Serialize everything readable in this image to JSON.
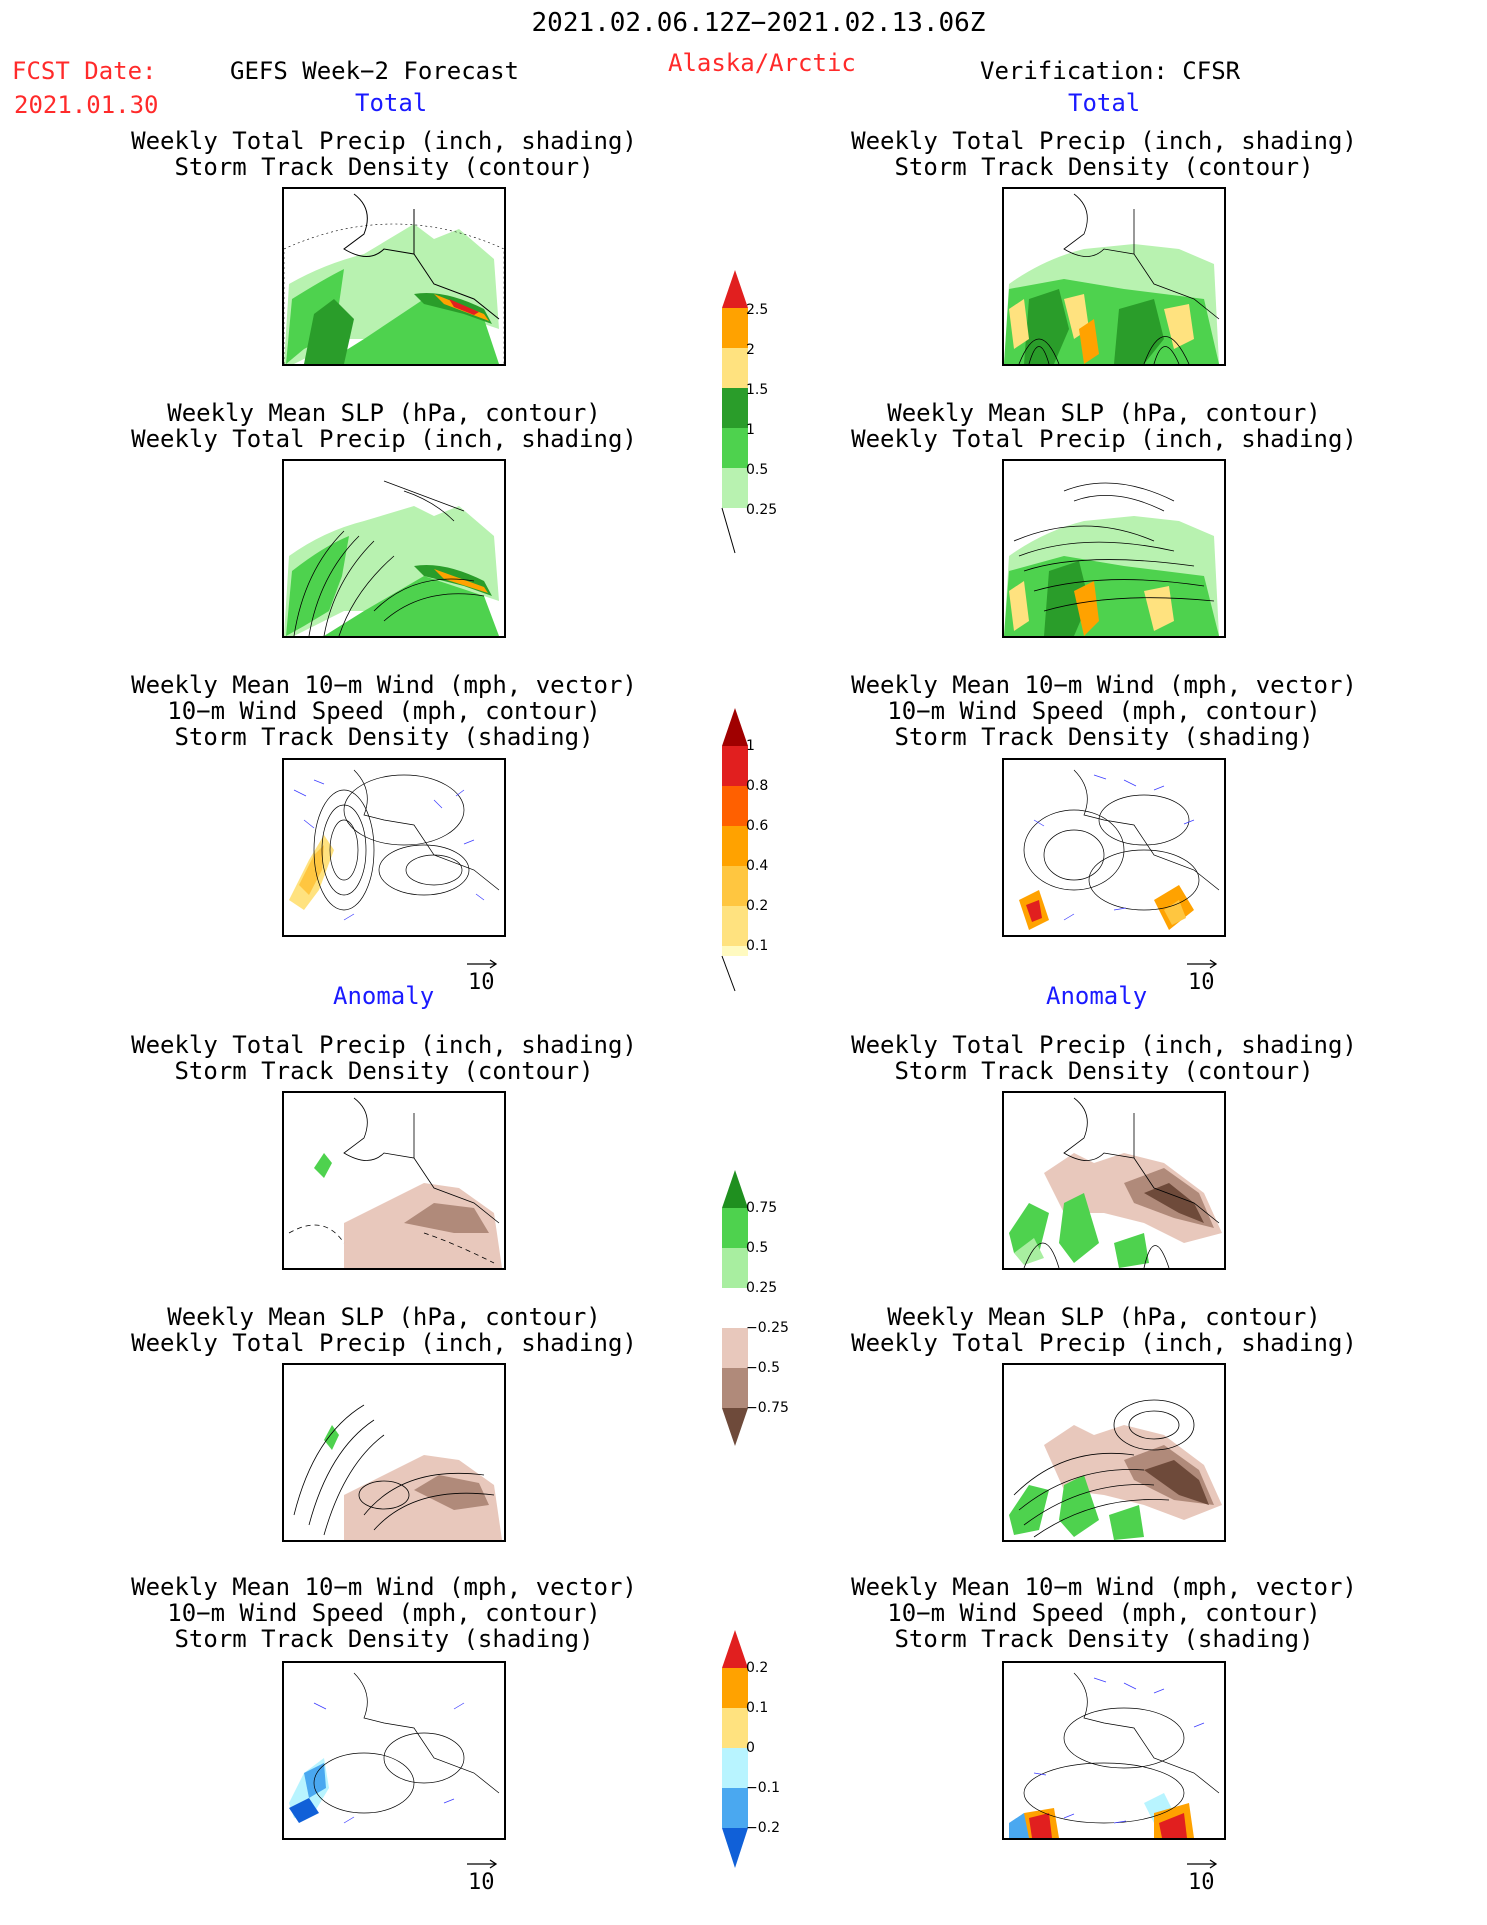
{
  "header": {
    "date_range": "2021.02.06.12Z−2021.02.13.06Z",
    "fcst_label": "FCST Date:",
    "fcst_date": "2021.01.30",
    "model": "GEFS Week−2 Forecast",
    "region": "Alaska/Arctic",
    "verification": "Verification: CFSR"
  },
  "sections": {
    "total": "Total",
    "anomaly": "Anomaly"
  },
  "titles": {
    "precip_track_1": "Weekly Total Precip (inch, shading)",
    "precip_track_2": "Storm Track Density (contour)",
    "slp_1": "Weekly Mean SLP (hPa, contour)",
    "slp_2": "Weekly Total Precip (inch, shading)",
    "wind_1": "Weekly Mean 10−m Wind (mph, vector)",
    "wind_2": "10−m Wind Speed (mph, contour)",
    "wind_3": "Storm Track Density (shading)"
  },
  "vector_ref": "10",
  "colorbars": {
    "precip_total": [
      "2.5",
      "2",
      "1.5",
      "1",
      "0.5",
      "0.25"
    ],
    "track_total": [
      "1",
      "0.8",
      "0.6",
      "0.4",
      "0.2",
      "0.1"
    ],
    "precip_anom": [
      "0.75",
      "0.5",
      "0.25",
      "−0.25",
      "−0.5",
      "−0.75"
    ],
    "track_anom": [
      "0.2",
      "0.1",
      "0",
      "−0.1",
      "−0.2"
    ]
  },
  "colors": {
    "header_red": "#ff2a2a",
    "section_blue": "#1a1aff",
    "precip_scale": [
      "#e11f1f",
      "#ffa200",
      "#ffe27f",
      "#2a9d2a",
      "#4ed24e",
      "#b8f2b0"
    ],
    "track_scale": [
      "#a00000",
      "#e11f1f",
      "#ff6000",
      "#ffa200",
      "#ffc640",
      "#ffe27f",
      "#fffac0"
    ],
    "anom_precip_scale": [
      "#1f8f1f",
      "#4ed24e",
      "#a8eea0",
      "#ffffff",
      "#e8c8bc",
      "#b08a7a",
      "#6e4a3a"
    ],
    "anom_track_scale": [
      "#e11f1f",
      "#ffa200",
      "#ffe27f",
      "#b8f4ff",
      "#4aa8f0",
      "#1060d8"
    ]
  }
}
